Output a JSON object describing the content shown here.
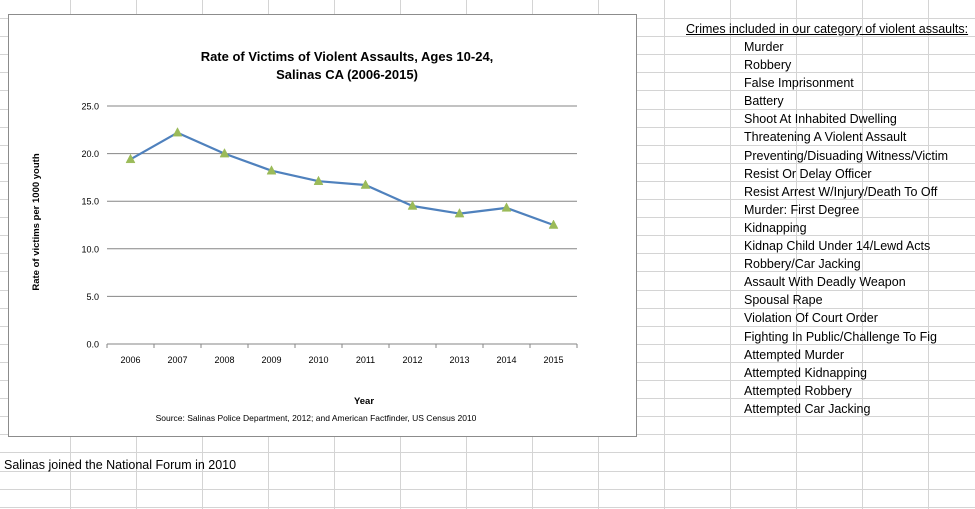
{
  "colors": {
    "series_line": "#4f81bd",
    "marker": "#9bbb59",
    "gridline": "#868686",
    "sheet_grid": "#d4d4d4"
  },
  "chart_data": {
    "type": "line",
    "title_line1": "Rate of Victims of Violent Assaults, Ages 10-24,",
    "title_line2": "Salinas CA (2006-2015)",
    "xlabel": "Year",
    "ylabel": "Rate of victims per 1000 youth",
    "source": "Source:  Salinas Police Department, 2012; and American Factfinder, US Census 2010",
    "categories": [
      "2006",
      "2007",
      "2008",
      "2009",
      "2010",
      "2011",
      "2012",
      "2013",
      "2014",
      "2015"
    ],
    "series": [
      {
        "values": [
          19.4,
          22.2,
          20.0,
          18.2,
          17.1,
          16.7,
          14.5,
          13.7,
          14.3,
          12.5
        ]
      }
    ],
    "yticks": [
      "0.0",
      "5.0",
      "10.0",
      "15.0",
      "20.0",
      "25.0"
    ],
    "ylim": [
      0,
      25
    ],
    "grid": true,
    "legend": "none"
  },
  "crimes": {
    "title": "Crimes included in our category of violent assaults:",
    "items": [
      "Murder",
      "Robbery",
      "False Imprisonment",
      "Battery",
      "Shoot At Inhabited Dwelling",
      "Threatening A Violent Assault",
      "Preventing/Disuading Witness/Victim",
      "Resist Or Delay Officer",
      "Resist Arrest W/Injury/Death To Off",
      "Murder: First Degree",
      "Kidnapping",
      "Kidnap Child Under 14/Lewd Acts",
      "Robbery/Car Jacking",
      "Assault With Deadly Weapon",
      "Spousal Rape",
      "Violation Of Court Order",
      "Fighting In Public/Challenge To Fig",
      "Attempted Murder",
      "Attempted Kidnapping",
      "Attempted Robbery",
      "Attempted Car Jacking"
    ]
  },
  "footer_note": "Salinas joined the National Forum in 2010"
}
